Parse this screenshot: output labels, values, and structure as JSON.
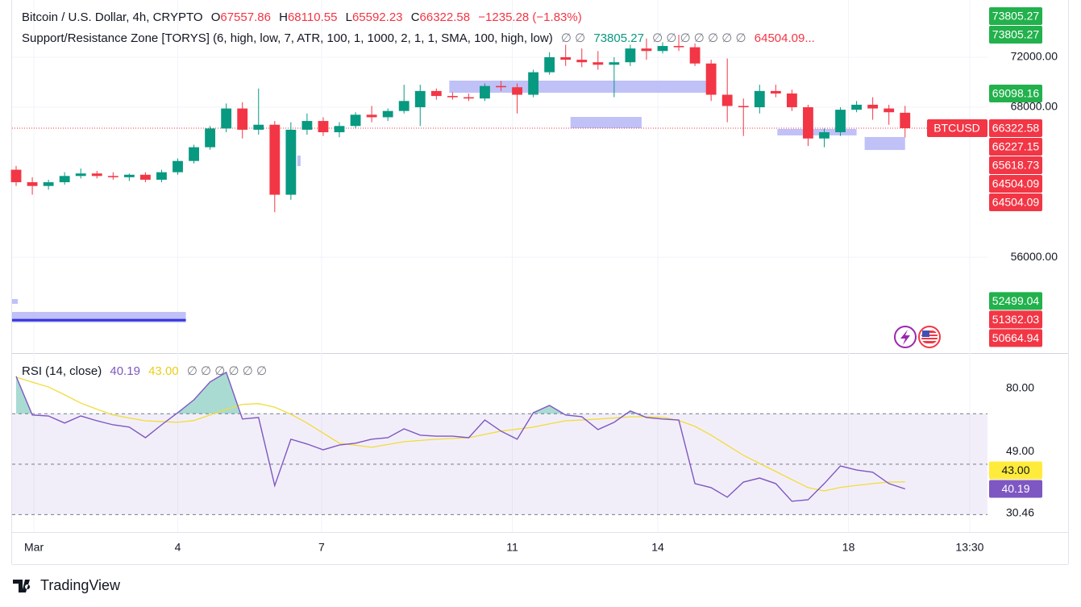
{
  "chart_data": {
    "type": "candlestick",
    "symbol": "Bitcoin / U.S. Dollar, 4h, CRYPTO",
    "ohlc_labels": [
      "O",
      "H",
      "L",
      "C"
    ],
    "change": "−1235.28 (−1.83%)",
    "indicator": "Support/Resistance Zone [TORYS] (6, high, low, 7, ATR, 100, 1, 1000, 2, 1, 1, SMA, 100, high, low)",
    "indicator_nulls_a": "∅ ∅",
    "indicator_value_a": 73805.27,
    "indicator_nulls_b": "∅ ∅ ∅ ∅ ∅ ∅ ∅",
    "indicator_value_b": "64504.09...",
    "symbol_tag": "BTCUSD",
    "up_color": "#089981",
    "down_color": "#f23645",
    "open": [
      63000,
      62000,
      61700,
      62000,
      62500,
      62700,
      62500,
      62400,
      62600,
      62200,
      62800,
      63700,
      64800,
      66300,
      67900,
      66200,
      66600,
      61000,
      66200,
      66900,
      66000,
      66500,
      67400,
      67200,
      67700,
      68000,
      69300,
      68900,
      68800,
      68700,
      69700,
      69600,
      69000,
      70800,
      72000,
      71800,
      71600,
      71400,
      71600,
      72700,
      72500,
      72900,
      72800,
      71500,
      69000,
      68100,
      68000,
      69300,
      69100,
      68000,
      65500,
      66000,
      67800,
      68200,
      67900,
      67557.86
    ],
    "high": [
      63300,
      62400,
      62200,
      62800,
      63100,
      62900,
      62800,
      62700,
      62800,
      63000,
      63900,
      65000,
      66500,
      68300,
      68400,
      69500,
      66900,
      66800,
      67500,
      67200,
      66800,
      67600,
      68100,
      67900,
      69800,
      69800,
      69500,
      69200,
      69100,
      69900,
      70100,
      69900,
      71000,
      72400,
      73000,
      72700,
      72500,
      72000,
      73000,
      73500,
      73200,
      73800,
      73100,
      71800,
      71900,
      68700,
      69800,
      69800,
      69400,
      68200,
      66300,
      68000,
      68500,
      68800,
      68200,
      68110.55
    ],
    "low": [
      61700,
      61000,
      61400,
      61800,
      62300,
      62300,
      62200,
      62100,
      62000,
      62000,
      62600,
      63500,
      64600,
      66000,
      65500,
      65800,
      59600,
      60600,
      65800,
      65700,
      65600,
      66300,
      66800,
      66900,
      67500,
      66500,
      68600,
      68600,
      68500,
      68500,
      69300,
      67500,
      68800,
      70600,
      71300,
      71200,
      71000,
      68800,
      71300,
      71800,
      72300,
      72500,
      71300,
      68500,
      66800,
      65700,
      67500,
      68800,
      67700,
      64900,
      64800,
      65700,
      67600,
      67000,
      66600,
      65592.23
    ],
    "close": [
      62000,
      61700,
      62000,
      62500,
      62700,
      62500,
      62400,
      62600,
      62200,
      62800,
      63700,
      64800,
      66300,
      67900,
      66200,
      66600,
      61000,
      66200,
      66900,
      66000,
      66500,
      67400,
      67200,
      67700,
      68500,
      69300,
      68900,
      68800,
      68700,
      69700,
      69600,
      69000,
      70800,
      72000,
      71800,
      71600,
      71400,
      71600,
      72700,
      72500,
      72900,
      72800,
      71500,
      69000,
      68100,
      68000,
      69300,
      69100,
      68000,
      65500,
      66000,
      67800,
      68200,
      67900,
      67600,
      66322.58
    ],
    "xlim": [
      -0.25,
      60.1
    ],
    "xticks": [
      {
        "value": 1.1,
        "label": "Mar"
      },
      {
        "value": 10,
        "label": "4"
      },
      {
        "value": 18.9,
        "label": "7"
      },
      {
        "value": 30.7,
        "label": "11"
      },
      {
        "value": 39.7,
        "label": "14"
      },
      {
        "value": 51.5,
        "label": "18"
      },
      {
        "value": 59,
        "label": "13:30"
      }
    ],
    "ylim": [
      48330,
      76580
    ],
    "yticks": [
      {
        "value": 56000,
        "label": "56000.00"
      },
      {
        "value": 68000,
        "label": "68000.00"
      },
      {
        "value": 72000,
        "label": "72000.00"
      }
    ],
    "grid": true,
    "tags": [
      73805.27,
      73805.27,
      69098.16,
      66227.15,
      65618.73,
      64504.09,
      64504.09,
      52499.04,
      51362.03,
      50664.94
    ],
    "tag_colors": [
      "#22b14c",
      "#22b14c",
      "#22b14c",
      "#f23645",
      "#f23645",
      "#f23645",
      "#f23645",
      "#22b14c",
      "#f23645",
      "#f23645"
    ],
    "zone_color": "#b4b6f6",
    "zones": [
      {
        "x0": 26.8,
        "x1": 42.9,
        "top": 70130,
        "bottom": 69160
      },
      {
        "x0": 34.3,
        "x1": 38.7,
        "top": 67225,
        "bottom": 66320
      },
      {
        "x0": 47.1,
        "x1": 52,
        "top": 66260,
        "bottom": 65745
      },
      {
        "x0": 52.5,
        "x1": 55,
        "top": 65615,
        "bottom": 64580
      },
      {
        "x0": 17.4,
        "x1": 17.6,
        "top": 64130,
        "bottom": 63290
      },
      {
        "x0": -0.25,
        "x1": 10.5,
        "top": 51620,
        "bottom": 50780
      },
      {
        "x0": -0.25,
        "x1": 0.1,
        "top": 52650,
        "bottom": 52270
      }
    ],
    "zone_line": {
      "x0": -0.25,
      "x1": 10.5,
      "value": 50970,
      "color": "#3333e0"
    },
    "rsi": {
      "title": "RSI (14, close)",
      "color": "#7e57c2",
      "ma_color": "#f2dc3a",
      "values": [
        84.8,
        69.5,
        69.1,
        66.3,
        69.1,
        67.2,
        65.6,
        64.7,
        60.5,
        65.6,
        70.4,
        75.5,
        82.6,
        86.4,
        67.9,
        68.5,
        41.5,
        59.9,
        58,
        55.7,
        57.6,
        58.3,
        59.9,
        60.5,
        64,
        61.5,
        61.1,
        61.1,
        60.5,
        67.5,
        63.1,
        59.9,
        70.4,
        73.3,
        69.5,
        68.8,
        63.7,
        66.6,
        71.1,
        68.5,
        67.9,
        67.5,
        42.3,
        40.7,
        36.9,
        42.9,
        44.5,
        42.3,
        35.3,
        35.9,
        42.3,
        49.3,
        47.7,
        46.8,
        42.3,
        40.19
      ],
      "ma_values": [
        84.5,
        82.5,
        80.6,
        77.5,
        74.2,
        71.8,
        69.5,
        68.3,
        67.2,
        66.9,
        66.6,
        67.3,
        69.5,
        71.7,
        73.7,
        74.0,
        72.6,
        69.8,
        66.3,
        62.3,
        58.3,
        57.5,
        56.7,
        57.8,
        58.9,
        59.4,
        59.9,
        60.2,
        60.5,
        61.8,
        63.1,
        63.9,
        64.7,
        66.0,
        67.2,
        67.5,
        67.9,
        68.3,
        68.8,
        68.8,
        68.6,
        67.3,
        65.0,
        61.5,
        57.5,
        53.5,
        50.3,
        47.1,
        43.9,
        40.7,
        39.4,
        40.8,
        41.6,
        42.3,
        42.9,
        43
      ],
      "ma_last_label": "43.00",
      "nulls": "∅ ∅ ∅ ∅ ∅ ∅",
      "ylim": [
        23.1,
        93.4
      ],
      "yticks": [
        {
          "value": 80,
          "label": "80.00"
        },
        {
          "value": 49,
          "label": "49.00"
        },
        30.46
      ],
      "bands": [
        70,
        50,
        30
      ]
    },
    "footer": "TradingView"
  }
}
